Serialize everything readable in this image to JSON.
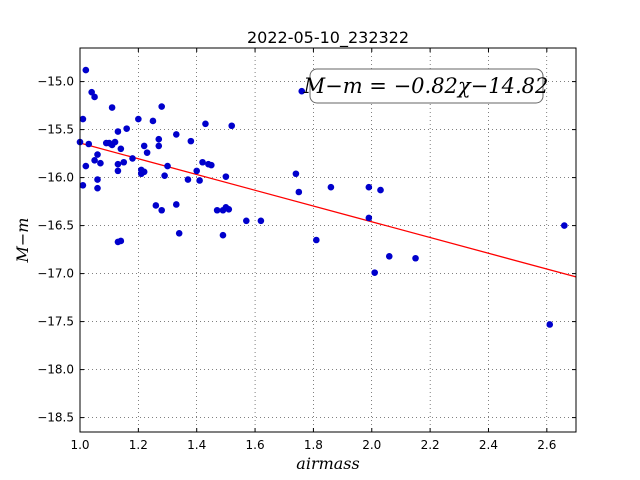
{
  "chart_data": {
    "type": "scatter",
    "title": "2022-05-10_232322",
    "xlabel": "airmass",
    "ylabel": "M−m",
    "xlim": [
      1.0,
      2.7
    ],
    "ylim": [
      -18.65,
      -14.65
    ],
    "y_inverted": true,
    "grid": true,
    "grid_style": "dotted",
    "xticks": [
      1.0,
      1.2,
      1.4,
      1.6,
      1.8,
      2.0,
      2.2,
      2.4,
      2.6
    ],
    "xtick_labels": [
      "1.0",
      "1.2",
      "1.4",
      "1.6",
      "1.8",
      "2.0",
      "2.2",
      "2.4",
      "2.6"
    ],
    "yticks": [
      -15.0,
      -15.5,
      -16.0,
      -16.5,
      -17.0,
      -17.5,
      -18.0,
      -18.5
    ],
    "ytick_labels": [
      "−15.0",
      "−15.5",
      "−16.0",
      "−16.5",
      "−17.0",
      "−17.5",
      "−18.0",
      "−18.5"
    ],
    "annotation": "M−m = −0.82χ−14.82",
    "fit": {
      "slope": -0.82,
      "intercept": -14.82,
      "color": "#ff0000"
    },
    "point_color": "#0000cc",
    "points": [
      [
        1.0,
        -15.63
      ],
      [
        1.01,
        -15.39
      ],
      [
        1.01,
        -16.08
      ],
      [
        1.02,
        -14.88
      ],
      [
        1.02,
        -15.88
      ],
      [
        1.03,
        -15.65
      ],
      [
        1.04,
        -15.11
      ],
      [
        1.05,
        -15.16
      ],
      [
        1.05,
        -15.82
      ],
      [
        1.06,
        -15.76
      ],
      [
        1.06,
        -16.02
      ],
      [
        1.06,
        -16.11
      ],
      [
        1.07,
        -15.85
      ],
      [
        1.09,
        -15.64
      ],
      [
        1.1,
        -15.64
      ],
      [
        1.11,
        -15.27
      ],
      [
        1.11,
        -15.66
      ],
      [
        1.12,
        -15.63
      ],
      [
        1.13,
        -15.52
      ],
      [
        1.13,
        -15.86
      ],
      [
        1.13,
        -15.93
      ],
      [
        1.13,
        -16.67
      ],
      [
        1.14,
        -15.7
      ],
      [
        1.14,
        -16.66
      ],
      [
        1.15,
        -15.84
      ],
      [
        1.16,
        -15.49
      ],
      [
        1.18,
        -15.8
      ],
      [
        1.2,
        -15.39
      ],
      [
        1.21,
        -15.92
      ],
      [
        1.21,
        -15.96
      ],
      [
        1.22,
        -15.67
      ],
      [
        1.22,
        -15.94
      ],
      [
        1.23,
        -15.74
      ],
      [
        1.25,
        -15.41
      ],
      [
        1.26,
        -16.29
      ],
      [
        1.27,
        -15.6
      ],
      [
        1.27,
        -15.67
      ],
      [
        1.28,
        -15.26
      ],
      [
        1.28,
        -16.34
      ],
      [
        1.29,
        -15.98
      ],
      [
        1.3,
        -15.88
      ],
      [
        1.33,
        -15.55
      ],
      [
        1.33,
        -16.28
      ],
      [
        1.34,
        -16.58
      ],
      [
        1.37,
        -16.02
      ],
      [
        1.38,
        -15.62
      ],
      [
        1.4,
        -15.93
      ],
      [
        1.41,
        -16.03
      ],
      [
        1.42,
        -15.84
      ],
      [
        1.43,
        -15.44
      ],
      [
        1.44,
        -15.86
      ],
      [
        1.45,
        -15.87
      ],
      [
        1.47,
        -16.34
      ],
      [
        1.49,
        -16.34
      ],
      [
        1.49,
        -16.6
      ],
      [
        1.5,
        -15.99
      ],
      [
        1.5,
        -16.31
      ],
      [
        1.51,
        -16.33
      ],
      [
        1.52,
        -15.46
      ],
      [
        1.57,
        -16.45
      ],
      [
        1.62,
        -16.45
      ],
      [
        1.74,
        -15.96
      ],
      [
        1.75,
        -16.15
      ],
      [
        1.76,
        -15.1
      ],
      [
        1.81,
        -16.65
      ],
      [
        1.86,
        -16.1
      ],
      [
        1.99,
        -16.1
      ],
      [
        1.99,
        -16.42
      ],
      [
        2.01,
        -16.99
      ],
      [
        2.03,
        -16.13
      ],
      [
        2.06,
        -16.82
      ],
      [
        2.15,
        -16.84
      ],
      [
        2.61,
        -17.53
      ],
      [
        2.66,
        -16.5
      ]
    ]
  }
}
